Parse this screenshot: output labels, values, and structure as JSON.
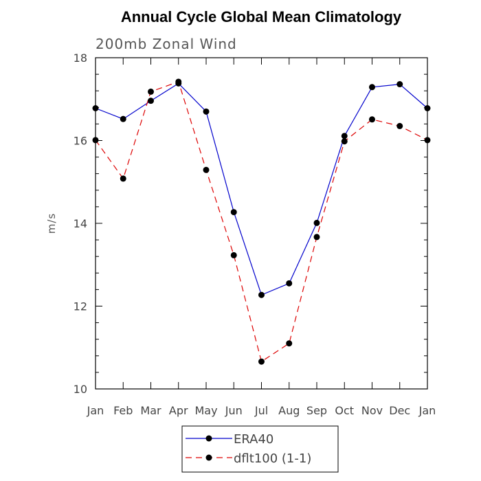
{
  "chart_data": {
    "type": "line",
    "title": "Annual Cycle Global Mean Climatology",
    "subtitle": "200mb Zonal Wind",
    "xlabel": "",
    "ylabel": "m/s",
    "ylim": [
      10,
      18
    ],
    "yticks": [
      10,
      12,
      14,
      16,
      18
    ],
    "categories": [
      "Jan",
      "Feb",
      "Mar",
      "Apr",
      "May",
      "Jun",
      "Jul",
      "Aug",
      "Sep",
      "Oct",
      "Nov",
      "Dec",
      "Jan"
    ],
    "grid": false,
    "legend_position": "bottom-center",
    "series": [
      {
        "name": "ERA40",
        "color": "#0000cc",
        "dash": "solid",
        "marker": "filled-circle",
        "values": [
          16.78,
          16.52,
          16.96,
          17.38,
          16.7,
          14.27,
          12.27,
          12.55,
          14.01,
          16.11,
          17.29,
          17.36,
          16.78
        ]
      },
      {
        "name": "dflt100 (1-1)",
        "color": "#dd0000",
        "dash": "dashed",
        "marker": "filled-circle",
        "values": [
          16.01,
          15.08,
          17.18,
          17.42,
          15.29,
          13.23,
          10.66,
          11.1,
          13.67,
          15.98,
          16.51,
          16.35,
          16.01
        ]
      }
    ]
  }
}
